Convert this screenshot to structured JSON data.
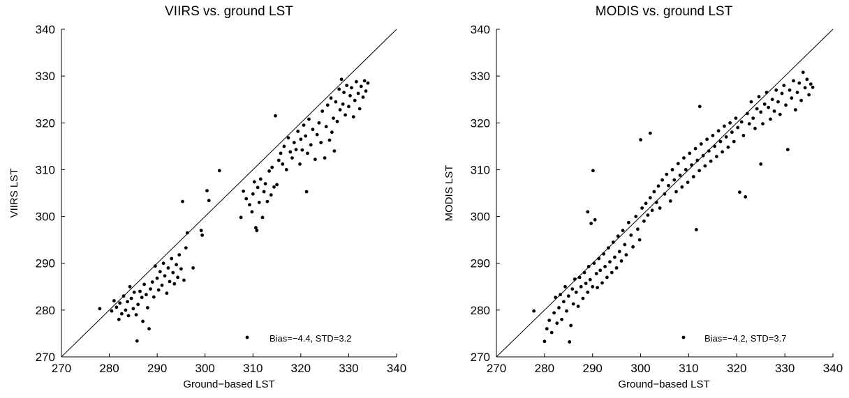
{
  "chart_data": [
    {
      "type": "scatter",
      "title": "VIIRS vs. ground LST",
      "xlabel": "Ground−based LST",
      "ylabel": "VIIRS LST",
      "xlim": [
        270,
        340
      ],
      "ylim": [
        270,
        340
      ],
      "xticks": [
        "270",
        "280",
        "290",
        "300",
        "310",
        "320",
        "330",
        "340"
      ],
      "yticks": [
        "270",
        "280",
        "290",
        "300",
        "310",
        "320",
        "330",
        "340"
      ],
      "reference_line": "1:1",
      "grid": false,
      "marker_color": "#000000",
      "annotation": "Bias=−4.4, STD=3.2",
      "legend_marker": [
        309,
        274
      ],
      "points": [
        [
          278,
          280.3
        ],
        [
          280.5,
          279.8
        ],
        [
          281,
          282
        ],
        [
          281.5,
          280.6
        ],
        [
          282,
          278
        ],
        [
          282.2,
          281.5
        ],
        [
          282.6,
          279.2
        ],
        [
          283,
          283
        ],
        [
          283.4,
          280
        ],
        [
          283.8,
          281.8
        ],
        [
          284,
          278.8
        ],
        [
          284.3,
          285
        ],
        [
          284.6,
          282.5
        ],
        [
          285,
          280.3
        ],
        [
          285.2,
          283.8
        ],
        [
          285.6,
          279
        ],
        [
          285.8,
          273.4
        ],
        [
          286,
          281.2
        ],
        [
          286.4,
          284
        ],
        [
          286.8,
          282.7
        ],
        [
          287,
          277.6
        ],
        [
          287.3,
          285.5
        ],
        [
          287.7,
          283.3
        ],
        [
          288,
          280.5
        ],
        [
          288.3,
          276
        ],
        [
          288.6,
          284.5
        ],
        [
          289,
          286
        ],
        [
          289.3,
          282.8
        ],
        [
          289.6,
          289.4
        ],
        [
          290,
          286.8
        ],
        [
          290.3,
          284.3
        ],
        [
          290.6,
          288.2
        ],
        [
          291,
          285.3
        ],
        [
          291.3,
          290
        ],
        [
          291.6,
          287.3
        ],
        [
          292,
          283.6
        ],
        [
          292.3,
          289
        ],
        [
          292.6,
          286.1
        ],
        [
          293,
          291
        ],
        [
          293.3,
          288
        ],
        [
          293.6,
          285.6
        ],
        [
          294,
          289.7
        ],
        [
          294.3,
          287
        ],
        [
          294.6,
          291.8
        ],
        [
          295,
          288.8
        ],
        [
          295.3,
          303.2
        ],
        [
          295.6,
          286.4
        ],
        [
          296,
          293.3
        ],
        [
          296.3,
          296.5
        ],
        [
          297.5,
          289
        ],
        [
          299.2,
          297
        ],
        [
          299.4,
          296
        ],
        [
          300.4,
          305.5
        ],
        [
          300.8,
          303.4
        ],
        [
          303,
          309.8
        ],
        [
          307.5,
          299.8
        ],
        [
          308,
          305.4
        ],
        [
          308.6,
          303.8
        ],
        [
          309.3,
          302.5
        ],
        [
          309.8,
          301
        ],
        [
          310,
          304.8
        ],
        [
          310.3,
          307.4
        ],
        [
          310.6,
          297.6
        ],
        [
          310.8,
          297
        ],
        [
          311,
          306.2
        ],
        [
          311.3,
          303
        ],
        [
          311.6,
          308
        ],
        [
          312,
          299.8
        ],
        [
          312.3,
          305.3
        ],
        [
          312.6,
          307
        ],
        [
          313,
          303.2
        ],
        [
          313.4,
          309.7
        ],
        [
          313.8,
          304.6
        ],
        [
          314,
          310.5
        ],
        [
          314.4,
          306.3
        ],
        [
          314.7,
          321.5
        ],
        [
          315,
          306.8
        ],
        [
          315.4,
          312
        ],
        [
          315.8,
          313.5
        ],
        [
          316.2,
          311.2
        ],
        [
          316.5,
          315
        ],
        [
          317,
          310
        ],
        [
          317.4,
          316.8
        ],
        [
          317.8,
          313.8
        ],
        [
          318.2,
          312.5
        ],
        [
          318.6,
          315.8
        ],
        [
          319,
          314.3
        ],
        [
          319.4,
          318.2
        ],
        [
          319.8,
          311.2
        ],
        [
          320,
          316.5
        ],
        [
          320.3,
          314.2
        ],
        [
          320.6,
          319.5
        ],
        [
          321,
          317.2
        ],
        [
          321.2,
          305.3
        ],
        [
          321.4,
          313.5
        ],
        [
          321.7,
          320.8
        ],
        [
          322.1,
          315.3
        ],
        [
          322.5,
          318.6
        ],
        [
          323,
          312.2
        ],
        [
          323.4,
          317.5
        ],
        [
          323.8,
          320
        ],
        [
          324.2,
          315.8
        ],
        [
          324.5,
          322.5
        ],
        [
          325,
          312.5
        ],
        [
          325.3,
          319.2
        ],
        [
          325.6,
          323.8
        ],
        [
          326,
          316.3
        ],
        [
          326.3,
          325.3
        ],
        [
          326.5,
          318
        ],
        [
          326.8,
          321
        ],
        [
          327,
          314
        ],
        [
          327.3,
          324.5
        ],
        [
          327.6,
          320.3
        ],
        [
          328,
          327.2
        ],
        [
          328.2,
          322.8
        ],
        [
          328.5,
          329.3
        ],
        [
          328.8,
          324
        ],
        [
          329,
          326.5
        ],
        [
          329.3,
          321.7
        ],
        [
          329.6,
          328
        ],
        [
          330,
          323.5
        ],
        [
          330.3,
          325.8
        ],
        [
          330.6,
          327.5
        ],
        [
          331,
          321.3
        ],
        [
          331.3,
          324.8
        ],
        [
          331.6,
          328.8
        ],
        [
          332,
          326.3
        ],
        [
          332.3,
          323
        ],
        [
          332.6,
          327.8
        ],
        [
          333,
          325.5
        ],
        [
          333.3,
          329
        ],
        [
          333.6,
          326.8
        ],
        [
          334,
          328.5
        ]
      ]
    },
    {
      "type": "scatter",
      "title": "MODIS vs. ground LST",
      "xlabel": "Ground−based LST",
      "ylabel": "MODIS LST",
      "xlim": [
        270,
        340
      ],
      "ylim": [
        270,
        340
      ],
      "xticks": [
        "270",
        "280",
        "290",
        "300",
        "310",
        "320",
        "330",
        "340"
      ],
      "yticks": [
        "270",
        "280",
        "290",
        "300",
        "310",
        "320",
        "330",
        "340"
      ],
      "reference_line": "1:1",
      "grid": false,
      "marker_color": "#000000",
      "annotation": "Bias=−4.2, STD=3.7",
      "legend_marker": [
        309,
        274
      ],
      "points": [
        [
          277.8,
          279.8
        ],
        [
          280,
          273.3
        ],
        [
          280.5,
          276
        ],
        [
          281,
          277.8
        ],
        [
          281.5,
          275.2
        ],
        [
          282,
          279.4
        ],
        [
          282.3,
          282.7
        ],
        [
          282.6,
          277.2
        ],
        [
          283,
          280.5
        ],
        [
          283.3,
          283.3
        ],
        [
          283.6,
          278
        ],
        [
          284,
          281.8
        ],
        [
          284.3,
          285
        ],
        [
          284.6,
          279.8
        ],
        [
          285,
          283
        ],
        [
          285.2,
          273.2
        ],
        [
          285.5,
          276.7
        ],
        [
          285.8,
          284.5
        ],
        [
          286,
          281.3
        ],
        [
          286.3,
          286.6
        ],
        [
          286.6,
          283.8
        ],
        [
          287,
          280.8
        ],
        [
          287.3,
          287
        ],
        [
          287.6,
          285
        ],
        [
          288,
          282.5
        ],
        [
          288.3,
          288
        ],
        [
          288.6,
          285.7
        ],
        [
          289,
          283.8
        ],
        [
          289,
          301
        ],
        [
          289.2,
          289.3
        ],
        [
          289.5,
          286.5
        ],
        [
          289.7,
          298.5
        ],
        [
          290,
          285
        ],
        [
          290.1,
          309.8
        ],
        [
          290.3,
          290
        ],
        [
          290.5,
          299.3
        ],
        [
          290.8,
          287.8
        ],
        [
          291,
          284.8
        ],
        [
          291.3,
          291
        ],
        [
          291.6,
          288.5
        ],
        [
          292,
          285.8
        ],
        [
          292.3,
          292
        ],
        [
          292.6,
          289.3
        ],
        [
          293,
          287
        ],
        [
          293.3,
          293.3
        ],
        [
          293.6,
          290.3
        ],
        [
          294,
          288
        ],
        [
          294.3,
          294.5
        ],
        [
          294.6,
          291.3
        ],
        [
          295,
          289
        ],
        [
          295.3,
          295.8
        ],
        [
          295.6,
          292.5
        ],
        [
          296,
          290.5
        ],
        [
          296.3,
          297
        ],
        [
          296.7,
          294
        ],
        [
          297,
          291.8
        ],
        [
          297.5,
          298.7
        ],
        [
          298,
          296
        ],
        [
          298.4,
          293.5
        ],
        [
          299,
          300
        ],
        [
          299.4,
          297.3
        ],
        [
          299.8,
          295
        ],
        [
          300,
          316.4
        ],
        [
          300.3,
          301.8
        ],
        [
          300.7,
          299
        ],
        [
          301.1,
          302.8
        ],
        [
          301.5,
          300.3
        ],
        [
          302,
          317.8
        ],
        [
          302,
          304
        ],
        [
          302.4,
          301.3
        ],
        [
          302.8,
          305.3
        ],
        [
          303.3,
          303
        ],
        [
          303.7,
          306.5
        ],
        [
          304,
          301.8
        ],
        [
          304.5,
          307.8
        ],
        [
          305,
          304.8
        ],
        [
          305.4,
          309
        ],
        [
          305.8,
          306.6
        ],
        [
          306.2,
          303.3
        ],
        [
          306.6,
          310
        ],
        [
          307,
          307.8
        ],
        [
          307.4,
          305.3
        ],
        [
          307.8,
          311.3
        ],
        [
          308.2,
          308.8
        ],
        [
          308.6,
          306.3
        ],
        [
          309,
          312.5
        ],
        [
          309.4,
          310
        ],
        [
          309.8,
          307.3
        ],
        [
          310.2,
          313.5
        ],
        [
          310.6,
          311
        ],
        [
          311,
          308.5
        ],
        [
          311.4,
          314.5
        ],
        [
          311.6,
          297.2
        ],
        [
          311.8,
          312
        ],
        [
          312.2,
          309.8
        ],
        [
          312.3,
          323.5
        ],
        [
          312.6,
          315.5
        ],
        [
          313,
          313
        ],
        [
          313.4,
          310.8
        ],
        [
          313.8,
          316.5
        ],
        [
          314.2,
          314
        ],
        [
          314.6,
          311.8
        ],
        [
          315,
          317.3
        ],
        [
          315.4,
          315
        ],
        [
          315.8,
          312.8
        ],
        [
          316.2,
          318.3
        ],
        [
          316.6,
          316
        ],
        [
          317,
          313.8
        ],
        [
          317.4,
          319.3
        ],
        [
          317.8,
          317
        ],
        [
          318.2,
          314.8
        ],
        [
          318.6,
          320
        ],
        [
          319,
          318
        ],
        [
          319.4,
          316
        ],
        [
          319.8,
          321
        ],
        [
          320.2,
          319
        ],
        [
          320.6,
          305.2
        ],
        [
          321,
          320.2
        ],
        [
          321.4,
          317.3
        ],
        [
          321.8,
          304.2
        ],
        [
          322.2,
          322
        ],
        [
          322.6,
          319.8
        ],
        [
          323,
          324.5
        ],
        [
          323.4,
          321
        ],
        [
          323.8,
          318.8
        ],
        [
          324.2,
          323
        ],
        [
          324.6,
          325.6
        ],
        [
          325,
          322.3
        ],
        [
          325,
          311.2
        ],
        [
          325.4,
          319.8
        ],
        [
          325.8,
          324
        ],
        [
          326.2,
          326.5
        ],
        [
          326.6,
          323.3
        ],
        [
          327,
          320.8
        ],
        [
          327.4,
          325
        ],
        [
          327.8,
          322.5
        ],
        [
          328.2,
          327
        ],
        [
          328.6,
          324.5
        ],
        [
          329,
          321.8
        ],
        [
          329.4,
          326.3
        ],
        [
          329.8,
          328
        ],
        [
          330.2,
          323.8
        ],
        [
          330.6,
          314.3
        ],
        [
          331,
          327
        ],
        [
          331.4,
          325.3
        ],
        [
          331.8,
          329
        ],
        [
          332.2,
          322.8
        ],
        [
          332.6,
          326.5
        ],
        [
          333,
          328.5
        ],
        [
          333.4,
          324.8
        ],
        [
          333.8,
          330.8
        ],
        [
          334.2,
          327.5
        ],
        [
          334.6,
          329.3
        ],
        [
          335,
          326
        ],
        [
          335.4,
          328.3
        ],
        [
          335.8,
          327.6
        ]
      ]
    }
  ]
}
